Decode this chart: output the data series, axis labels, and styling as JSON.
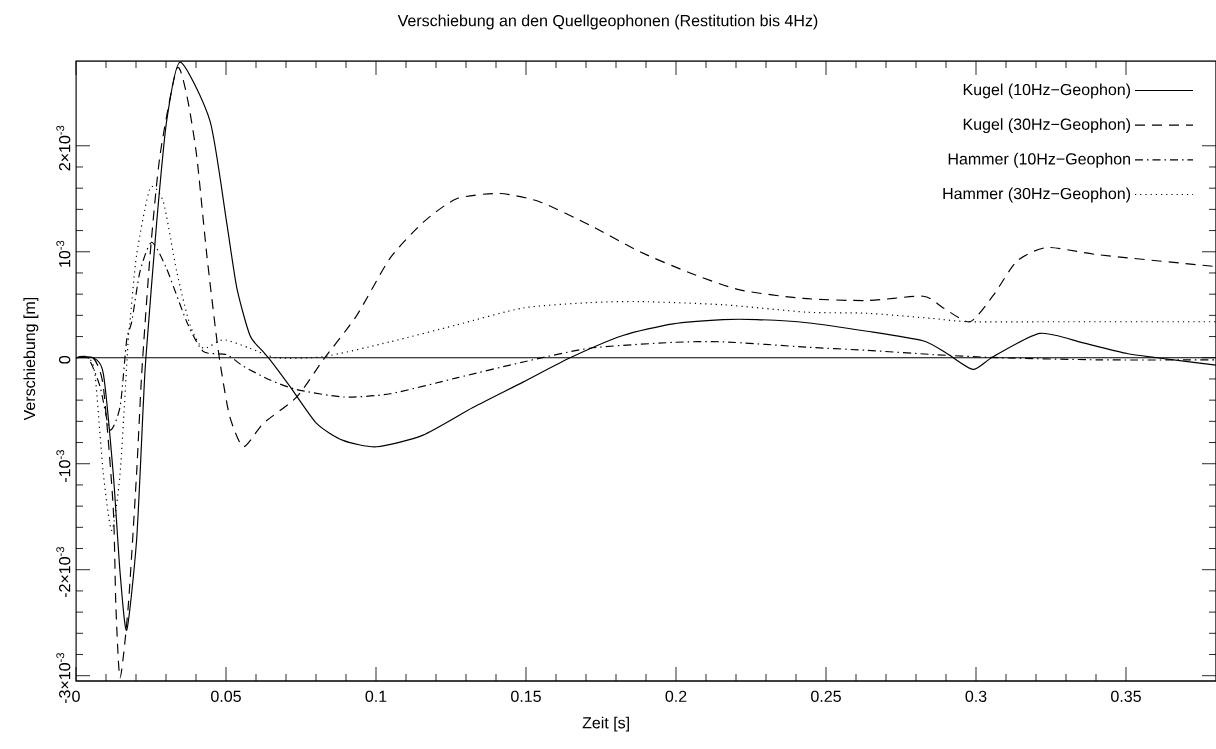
{
  "chart_data": {
    "type": "line",
    "title": "Verschiebung an den Quellgeophonen (Restitution bis 4Hz)",
    "xlabel": "Zeit [s]",
    "ylabel": "Verschiebung [m]",
    "xlim": [
      0,
      0.38
    ],
    "ylim": [
      -0.00305,
      0.0028
    ],
    "xticks": [
      0,
      0.05,
      0.1,
      0.15,
      0.2,
      0.25,
      0.3,
      0.35
    ],
    "yticks": [
      {
        "value": -0.003,
        "label": "-3×10$^{-3}$"
      },
      {
        "value": -0.002,
        "label": "-2×10$^{-3}$"
      },
      {
        "value": -0.001,
        "label": "-10$^{-3}$"
      },
      {
        "value": 0,
        "label": "0"
      },
      {
        "value": 0.001,
        "label": "10$^{-3}$"
      },
      {
        "value": 0.002,
        "label": "2×10$^{-3}$"
      }
    ],
    "legend": "top right",
    "ref_lines": [
      {
        "axis": "y",
        "value": 0,
        "color": "#000000"
      }
    ],
    "series": [
      {
        "name": "Kugel (10Hz−Geophon)",
        "color": "#000000",
        "line_style": "solid",
        "x": [
          0,
          0.0057,
          0.0091,
          0.0124,
          0.0147,
          0.0169,
          0.0202,
          0.0224,
          0.0233,
          0.0269,
          0.0302,
          0.0347,
          0.0447,
          0.0502,
          0.0536,
          0.058,
          0.0623,
          0.0647,
          0.0713,
          0.0802,
          0.089,
          0.1002,
          0.1157,
          0.1323,
          0.149,
          0.1647,
          0.1823,
          0.199,
          0.2157,
          0.227,
          0.2437,
          0.2637,
          0.2823,
          0.2903,
          0.299,
          0.3057,
          0.3213,
          0.3357,
          0.3503,
          0.3603,
          0.38
        ],
        "values": [
          0,
          0,
          -0.00015,
          -0.00109,
          -0.00203,
          -0.00257,
          -0.00172,
          -0.00046,
          0,
          0.00128,
          0.00223,
          0.00279,
          0.00223,
          0.00128,
          0.00066,
          0.00021,
          6e-05,
          -2e-05,
          -0.00027,
          -0.00062,
          -0.00078,
          -0.00084,
          -0.00073,
          -0.00047,
          -0.00023,
          0,
          0.00021,
          0.00032,
          0.00036,
          0.00036,
          0.00033,
          0.00025,
          0.00016,
          4e-05,
          -0.00011,
          1e-05,
          0.00023,
          0.00014,
          4e-05,
          0,
          -7e-05
        ]
      },
      {
        "name": "Kugel (30Hz−Geophon)",
        "color": "#000000",
        "line_style": "dashed",
        "x": [
          0,
          0.0057,
          0.0091,
          0.0124,
          0.0133,
          0.0147,
          0.0174,
          0.0202,
          0.0219,
          0.0247,
          0.028,
          0.0336,
          0.0369,
          0.0402,
          0.0436,
          0.0469,
          0.0486,
          0.0513,
          0.0558,
          0.0624,
          0.0736,
          0.0824,
          0.0936,
          0.1047,
          0.1158,
          0.1269,
          0.1413,
          0.1547,
          0.1713,
          0.188,
          0.2047,
          0.2213,
          0.2424,
          0.2636,
          0.2824,
          0.2891,
          0.298,
          0.3058,
          0.3136,
          0.3236,
          0.3413,
          0.38
        ],
        "values": [
          0,
          0,
          -0.00027,
          -0.00141,
          -0.00235,
          -0.00302,
          -0.00235,
          -0.00109,
          -0.00015,
          0.00097,
          0.00191,
          0.00273,
          0.00248,
          0.00191,
          0.00097,
          0.00018,
          -0.00015,
          -0.00056,
          -0.00084,
          -0.00062,
          -0.00037,
          -2e-05,
          0.0004,
          0.00094,
          0.00128,
          0.0015,
          0.00155,
          0.00147,
          0.00125,
          0.001,
          0.0008,
          0.00064,
          0.00056,
          0.00054,
          0.00058,
          0.00047,
          0.00034,
          0.00059,
          0.00091,
          0.00104,
          0.00097,
          0.00086
        ]
      },
      {
        "name": "Hammer (10Hz−Geophon",
        "color": "#000000",
        "line_style": "dashdot",
        "x": [
          0,
          0.004,
          0.008,
          0.0113,
          0.0147,
          0.0169,
          0.0186,
          0.0213,
          0.0252,
          0.0302,
          0.0369,
          0.0424,
          0.0502,
          0.0558,
          0.0647,
          0.0736,
          0.0891,
          0.1047,
          0.1269,
          0.1491,
          0.1713,
          0.1991,
          0.2158,
          0.2436,
          0.2636,
          0.2858,
          0.308,
          0.3413,
          0.38
        ],
        "values": [
          0,
          0,
          -0.00027,
          -0.00068,
          -0.00046,
          0.00017,
          0.00034,
          0.00081,
          0.00109,
          0.00084,
          0.00034,
          6e-05,
          3e-05,
          -8e-05,
          -0.00021,
          -0.0003,
          -0.00037,
          -0.00034,
          -0.00019,
          -4e-05,
          9e-05,
          0.000145,
          0.00015,
          0.0001,
          7e-05,
          3e-05,
          0,
          -2e-05,
          -2e-05
        ]
      },
      {
        "name": "Hammer (30Hz−Geophon)",
        "color": "#000000",
        "line_style": "dotted",
        "x": [
          0,
          0.004,
          0.0063,
          0.0091,
          0.0119,
          0.0147,
          0.0174,
          0.018,
          0.0202,
          0.0247,
          0.0291,
          0.0336,
          0.038,
          0.0424,
          0.0491,
          0.058,
          0.0669,
          0.0824,
          0.1047,
          0.1269,
          0.1491,
          0.1713,
          0.188,
          0.2158,
          0.2436,
          0.2636,
          0.2858,
          0.298,
          0.3302,
          0.38
        ],
        "values": [
          0,
          0,
          -0.00015,
          -0.00109,
          -0.00163,
          -0.00109,
          0.00017,
          0.00034,
          0.00097,
          0.0016,
          0.00147,
          0.00081,
          0.00031,
          9e-05,
          0.00017,
          9e-05,
          0,
          1e-05,
          0.00015,
          0.00031,
          0.00047,
          0.00052,
          0.00053,
          0.0005,
          0.00043,
          0.00042,
          0.00037,
          0.00034,
          0.00034,
          0.00034
        ]
      }
    ]
  }
}
